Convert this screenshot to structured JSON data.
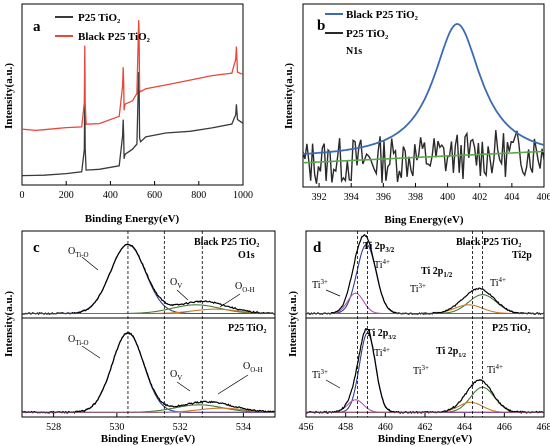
{
  "chart_data": [
    {
      "id": "a",
      "type": "line",
      "panel_label": "a",
      "xlabel": "Binding Energy(eV)",
      "ylabel": "Intensity(a.u.)",
      "xlim": [
        0,
        1000
      ],
      "xticks": [
        "0",
        "200",
        "400",
        "600",
        "800",
        "1000"
      ],
      "legend": "top-left",
      "series": [
        {
          "name": "P25 TiO₂",
          "color": "#3a3a3a",
          "x": [
            0,
            60,
            100,
            200,
            270,
            282,
            284,
            286,
            290,
            350,
            440,
            455,
            458,
            460,
            462,
            466,
            500,
            520,
            528,
            530,
            532,
            536,
            560,
            650,
            760,
            860,
            950,
            960,
            967,
            970,
            975,
            990,
            1000
          ],
          "y": [
            0.05,
            0.05,
            0.06,
            0.07,
            0.08,
            0.25,
            0.68,
            0.25,
            0.09,
            0.1,
            0.13,
            0.35,
            0.48,
            0.36,
            0.18,
            0.22,
            0.25,
            0.3,
            0.85,
            0.78,
            0.35,
            0.32,
            0.34,
            0.37,
            0.4,
            0.42,
            0.44,
            0.5,
            0.52,
            0.6,
            0.48,
            0.47,
            0.46
          ]
        },
        {
          "name": "Black P25 TiO₂",
          "color": "#e8473a",
          "x": [
            0,
            60,
            100,
            200,
            270,
            282,
            284,
            286,
            290,
            350,
            440,
            455,
            458,
            460,
            462,
            466,
            500,
            520,
            528,
            530,
            532,
            536,
            560,
            650,
            760,
            860,
            950,
            960,
            967,
            970,
            975,
            990,
            1000
          ],
          "y": [
            0.4,
            0.4,
            0.41,
            0.42,
            0.43,
            0.62,
            1.05,
            0.62,
            0.45,
            0.46,
            0.5,
            0.75,
            0.88,
            0.76,
            0.56,
            0.6,
            0.63,
            0.68,
            1.25,
            1.15,
            0.72,
            0.7,
            0.73,
            0.76,
            0.79,
            0.82,
            0.84,
            0.9,
            0.95,
            1.05,
            0.85,
            0.84,
            0.83
          ]
        }
      ]
    },
    {
      "id": "b",
      "type": "line",
      "panel_label": "b",
      "title": "N1s",
      "xlabel": "Bing Energy(eV)",
      "ylabel": "Intensity(a.u.)",
      "xlim": [
        391,
        406
      ],
      "xticks": [
        "392",
        "394",
        "396",
        "398",
        "400",
        "402",
        "404",
        "406"
      ],
      "legend": "top-left",
      "series": [
        {
          "name": "Black P25 TiO₂",
          "color": "#3b6bb0",
          "peak_center": 400.6,
          "peak_width": 1.8,
          "peak_height": 0.95,
          "baseline": 0.18
        },
        {
          "name": "P25 TiO₂",
          "color": "#2a2a2a",
          "noise_level": 0.17
        },
        {
          "name": "",
          "color": "#5aa84a",
          "baseline_from": 0.15,
          "baseline_to": 0.23
        }
      ]
    },
    {
      "id": "c",
      "type": "line",
      "panel_label": "c",
      "title": "O1s",
      "xlabel": "Binding Energy(eV)",
      "ylabel": "Intensity(a.u.)",
      "xlim": [
        527,
        535
      ],
      "xticks": [
        "528",
        "530",
        "532",
        "534"
      ],
      "reference_lines": [
        530.35,
        531.5,
        532.7
      ],
      "subplots": [
        {
          "sample": "Black P25 TiO₂",
          "peaks": [
            {
              "label": "O_Ti-O",
              "center": 530.35,
              "height": 0.95,
              "width": 0.55,
              "color": "#2e3f8f"
            },
            {
              "label": "O_V",
              "center": 532.5,
              "height": 0.12,
              "width": 0.75,
              "color": "#4b7a3a"
            },
            {
              "label": "O_O-H",
              "center": 533.1,
              "height": 0.06,
              "width": 0.7,
              "color": "#c87b2a"
            }
          ]
        },
        {
          "sample": "P25 TiO₂",
          "peaks": [
            {
              "label": "O_Ti-O",
              "center": 530.35,
              "height": 0.95,
              "width": 0.5,
              "color": "#2e3f8f"
            },
            {
              "label": "O_V",
              "center": 532.6,
              "height": 0.09,
              "width": 0.75,
              "color": "#4b7a3a"
            },
            {
              "label": "O_O-H",
              "center": 533.3,
              "height": 0.05,
              "width": 0.7,
              "color": "#c87b2a"
            }
          ]
        }
      ]
    },
    {
      "id": "d",
      "type": "line",
      "panel_label": "d",
      "title": "Ti2p",
      "xlabel": "Binding Energy(eV)",
      "ylabel": "Intensity(a.u.)",
      "xlim": [
        456,
        468
      ],
      "xticks": [
        "456",
        "458",
        "460",
        "462",
        "464",
        "466",
        "468"
      ],
      "reference_lines": [
        458.6,
        459.1,
        464.4,
        464.9
      ],
      "subplots": [
        {
          "sample": "Black P25 TiO₂",
          "peaks": [
            {
              "label": "Ti4+ 2p3/2",
              "center": 459.05,
              "height": 0.95,
              "width": 0.48,
              "color": "#2e3f8f"
            },
            {
              "label": "Ti3+ 2p3/2",
              "center": 458.5,
              "height": 0.28,
              "width": 0.4,
              "color": "#b05ab0"
            },
            {
              "label": "Ti4+ 2p1/2",
              "center": 464.9,
              "height": 0.26,
              "width": 0.7,
              "color": "#4b7a3a"
            },
            {
              "label": "Ti3+ 2p1/2",
              "center": 464.2,
              "height": 0.12,
              "width": 0.7,
              "color": "#c87b2a"
            }
          ]
        },
        {
          "sample": "P25 TiO₂",
          "peaks": [
            {
              "label": "Ti4+ 2p3/2",
              "center": 459.1,
              "height": 0.95,
              "width": 0.4,
              "color": "#2e3f8f"
            },
            {
              "label": "Ti3+ 2p3/2",
              "center": 458.5,
              "height": 0.15,
              "width": 0.4,
              "color": "#b05ab0"
            },
            {
              "label": "Ti4+ 2p1/2",
              "center": 464.9,
              "height": 0.3,
              "width": 0.6,
              "color": "#4b7a3a"
            },
            {
              "label": "Ti3+ 2p1/2",
              "center": 464.3,
              "height": 0.12,
              "width": 0.6,
              "color": "#c87b2a"
            }
          ]
        }
      ]
    }
  ]
}
